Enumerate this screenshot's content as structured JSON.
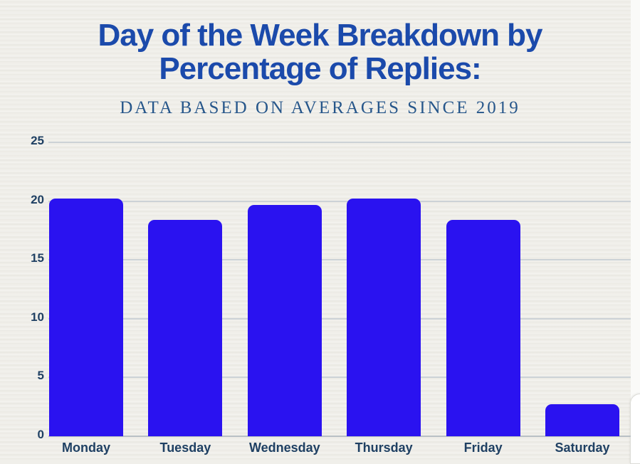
{
  "header": {
    "title_line1": "Day of the Week Breakdown by",
    "title_line2": "Percentage of Replies:",
    "subtitle": "DATA BASED ON AVERAGES SINCE 2019"
  },
  "colors": {
    "background": "#f0efea",
    "title": "#1b4aab",
    "subtitle": "#26568a",
    "axis_labels": "#1f4063",
    "bar": "#2a12f0",
    "gridline": "#ccd2d6"
  },
  "chart_data": {
    "type": "bar",
    "title": "Day of the Week Breakdown by Percentage of Replies:",
    "subtitle": "DATA BASED ON AVERAGES SINCE 2019",
    "categories": [
      "Monday",
      "Tuesday",
      "Wednesday",
      "Thursday",
      "Friday",
      "Saturday"
    ],
    "values": [
      20.2,
      18.4,
      19.7,
      20.2,
      18.4,
      2.7
    ],
    "unit": "percent of replies",
    "xlabel": "",
    "ylabel": "",
    "ylim": [
      0,
      25
    ],
    "yticks": [
      0,
      5,
      10,
      15,
      20,
      25
    ],
    "grid": true,
    "legend": false,
    "bar_color": "#2a12f0"
  }
}
